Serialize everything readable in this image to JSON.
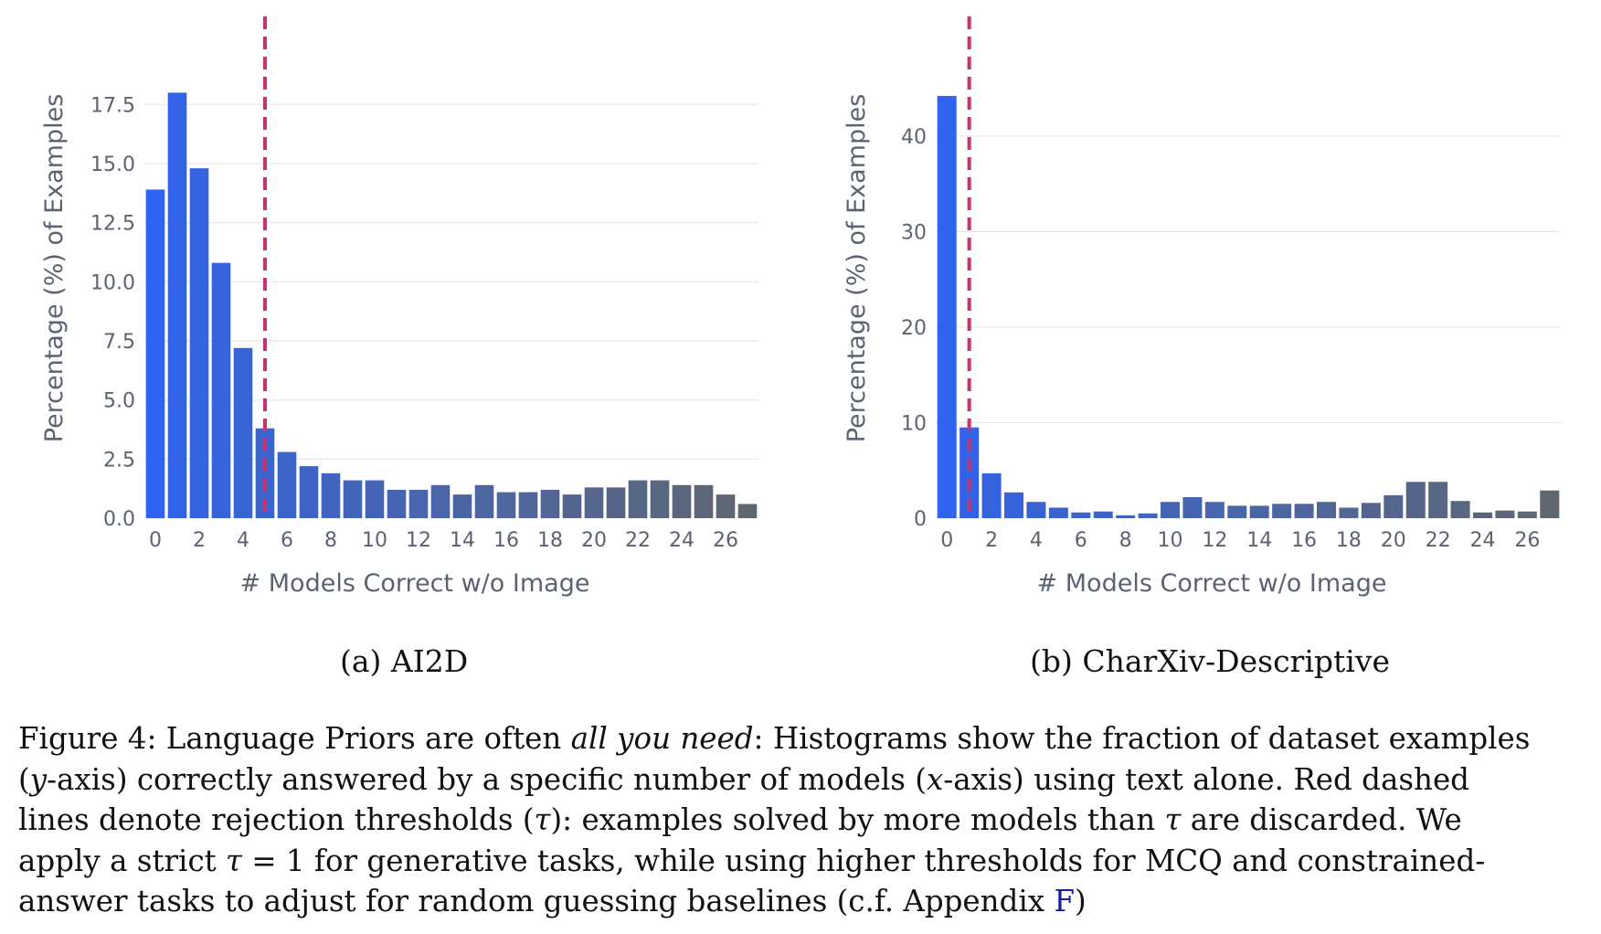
{
  "chart_data": [
    {
      "type": "bar",
      "title": "",
      "subcaption": "(a) AI2D",
      "xlabel": "# Models Correct w/o Image",
      "ylabel": "Percentage (%) of Examples",
      "x": [
        0,
        1,
        2,
        3,
        4,
        5,
        6,
        7,
        8,
        9,
        10,
        11,
        12,
        13,
        14,
        15,
        16,
        17,
        18,
        19,
        20,
        21,
        22,
        23,
        24,
        25,
        26,
        27
      ],
      "values": [
        13.9,
        18.0,
        14.8,
        10.8,
        7.2,
        3.8,
        2.8,
        2.2,
        1.9,
        1.6,
        1.6,
        1.2,
        1.2,
        1.4,
        1.0,
        1.4,
        1.1,
        1.1,
        1.2,
        1.0,
        1.3,
        1.3,
        1.6,
        1.6,
        1.4,
        1.4,
        1.0,
        0.6
      ],
      "xlim": [
        -0.5,
        27.5
      ],
      "ylim": [
        0,
        19.6
      ],
      "xticks": [
        0,
        2,
        4,
        6,
        8,
        10,
        12,
        14,
        16,
        18,
        20,
        22,
        24,
        26
      ],
      "xtick_labels": [
        "0",
        "2",
        "4",
        "6",
        "8",
        "10",
        "12",
        "14",
        "16",
        "18",
        "20",
        "22",
        "24",
        "26"
      ],
      "yticks": [
        0,
        2.5,
        5,
        7.5,
        10,
        12.5,
        15,
        17.5
      ],
      "ytick_labels": [
        "0.0",
        "2.5",
        "5.0",
        "7.5",
        "10.0",
        "12.5",
        "15.0",
        "17.5"
      ],
      "threshold": 5,
      "threshold_color": "#c8336f",
      "bar_color_start": "#2f63f0",
      "bar_color_end": "#5f6670",
      "grid": "horizontal"
    },
    {
      "type": "bar",
      "title": "",
      "subcaption": "(b) CharXiv-Descriptive",
      "xlabel": "# Models Correct w/o Image",
      "ylabel": "Percentage (%) of Examples",
      "x": [
        0,
        1,
        2,
        3,
        4,
        5,
        6,
        7,
        8,
        9,
        10,
        11,
        12,
        13,
        14,
        15,
        16,
        17,
        18,
        19,
        20,
        21,
        22,
        23,
        24,
        25,
        26,
        27
      ],
      "values": [
        44.2,
        9.5,
        4.7,
        2.7,
        1.7,
        1.1,
        0.6,
        0.7,
        0.3,
        0.5,
        1.7,
        2.2,
        1.7,
        1.3,
        1.3,
        1.5,
        1.5,
        1.7,
        1.1,
        1.6,
        2.4,
        3.8,
        3.8,
        1.8,
        0.6,
        0.8,
        0.7,
        2.9
      ],
      "xlim": [
        -0.5,
        27.5
      ],
      "ylim": [
        0,
        48.5
      ],
      "xticks": [
        0,
        2,
        4,
        6,
        8,
        10,
        12,
        14,
        16,
        18,
        20,
        22,
        24,
        26
      ],
      "xtick_labels": [
        "0",
        "2",
        "4",
        "6",
        "8",
        "10",
        "12",
        "14",
        "16",
        "18",
        "20",
        "22",
        "24",
        "26"
      ],
      "yticks": [
        0,
        10,
        20,
        30,
        40
      ],
      "ytick_labels": [
        "0",
        "10",
        "20",
        "30",
        "40"
      ],
      "threshold": 1,
      "threshold_color": "#c8336f",
      "bar_color_start": "#2f63f0",
      "bar_color_end": "#5f6670",
      "grid": "horizontal"
    }
  ],
  "caption": {
    "line1_a": "Figure 4: Language Priors are often ",
    "line1_em": "all you need",
    "line1_b": ": Histograms show the fraction of dataset examples",
    "line2_a": "(",
    "line2_em1": "y",
    "line2_b": "-axis) correctly answered by a specific number of models (",
    "line2_em2": "x",
    "line2_c": "-axis) using text alone. Red dashed",
    "line3_a": "lines denote rejection thresholds (",
    "line3_em1": "τ",
    "line3_b": "): examples solved by more models than ",
    "line3_em2": "τ",
    "line3_c": " are discarded. We",
    "line4_a": "apply a strict ",
    "line4_em": "τ",
    "line4_b": " = 1 for generative tasks, while using higher thresholds for MCQ and constrained-",
    "line5_a": "answer tasks to adjust for random guessing baselines (c.f. Appendix ",
    "line5_link": "F",
    "line5_b": ")"
  }
}
